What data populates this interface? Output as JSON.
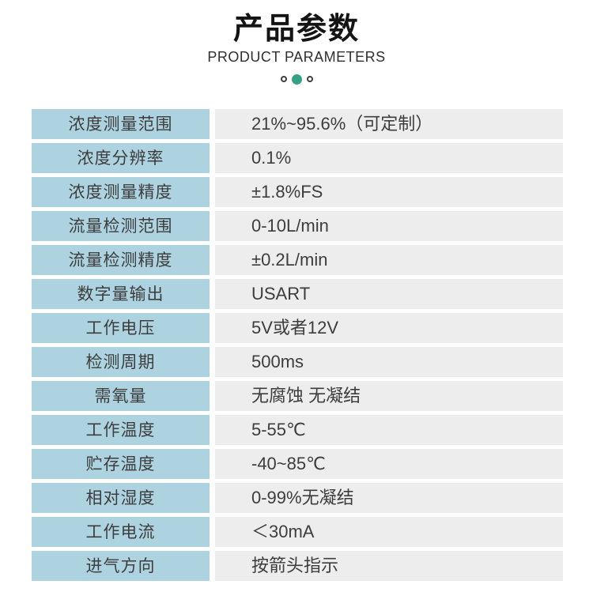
{
  "header": {
    "title_cn": "产品参数",
    "title_en": "PRODUCT PARAMETERS",
    "dots": [
      "inactive",
      "active",
      "inactive"
    ]
  },
  "colors": {
    "label_bg": "#aed3e0",
    "value_bg": "#ededed",
    "dot_active": "#34a184",
    "text": "#3d3d3d",
    "title": "#141414"
  },
  "table": {
    "rows": [
      {
        "label": "浓度测量范围",
        "value": "21%~95.6%（可定制）"
      },
      {
        "label": "浓度分辨率",
        "value": "0.1%"
      },
      {
        "label": "浓度测量精度",
        "value": "±1.8%FS"
      },
      {
        "label": "流量检测范围",
        "value": "0-10L/min"
      },
      {
        "label": "流量检测精度",
        "value": "±0.2L/min"
      },
      {
        "label": "数字量输出",
        "value": "USART"
      },
      {
        "label": "工作电压",
        "value": "5V或者12V"
      },
      {
        "label": "检测周期",
        "value": "500ms"
      },
      {
        "label": "需氧量",
        "value": "无腐蚀 无凝结"
      },
      {
        "label": "工作温度",
        "value": "5-55℃"
      },
      {
        "label": "贮存温度",
        "value": "-40~85℃"
      },
      {
        "label": "相对湿度",
        "value": "0-99%无凝结"
      },
      {
        "label": "工作电流",
        "value": "＜30mA"
      },
      {
        "label": "进气方向",
        "value": "按箭头指示"
      }
    ]
  }
}
